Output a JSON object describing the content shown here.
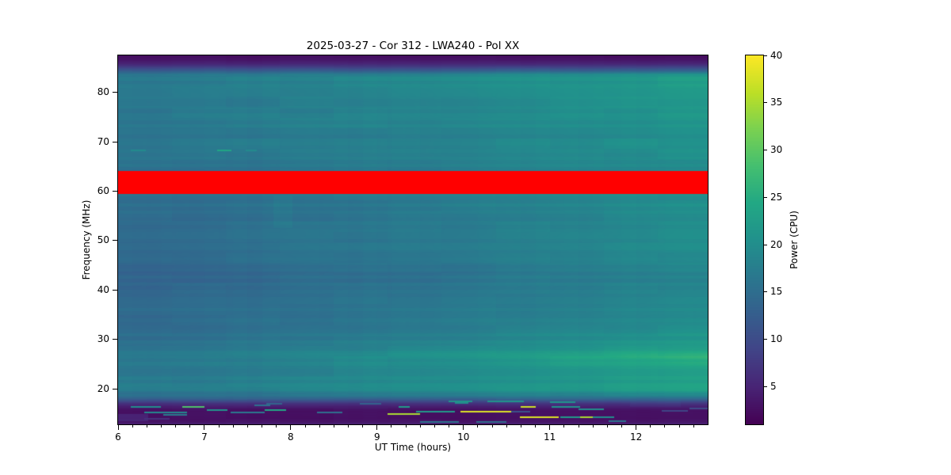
{
  "figure": {
    "background": "#ffffff",
    "text_color": "#000000"
  },
  "chart_data": {
    "type": "heatmap",
    "title": "2025-03-27 - Cor 312 - LWA240 - Pol XX",
    "xlabel": "UT Time (hours)",
    "ylabel": "Frequency (MHz)",
    "colorbar_label": "Power (CPU)",
    "x_range_hours": [
      6.0,
      12.83
    ],
    "y_range_mhz": [
      12.8,
      87.5
    ],
    "value_range": [
      1,
      40
    ],
    "x_major_ticks": [
      6,
      7,
      8,
      9,
      10,
      11,
      12
    ],
    "x_minor_tick_step_hours": 0.166667,
    "y_major_ticks": [
      20,
      30,
      40,
      50,
      60,
      70,
      80
    ],
    "colorbar_ticks": [
      5,
      10,
      15,
      20,
      25,
      30,
      35,
      40
    ],
    "colormap": "viridis",
    "colormap_stops": [
      [
        0.0,
        "#440154"
      ],
      [
        0.1,
        "#482475"
      ],
      [
        0.2,
        "#414487"
      ],
      [
        0.3,
        "#355f8d"
      ],
      [
        0.4,
        "#2a788e"
      ],
      [
        0.5,
        "#21918c"
      ],
      [
        0.6,
        "#22a884"
      ],
      [
        0.7,
        "#44bf70"
      ],
      [
        0.8,
        "#7ad151"
      ],
      [
        0.9,
        "#bddf26"
      ],
      [
        1.0,
        "#fde725"
      ]
    ],
    "masked_band": {
      "f_low": 59.4,
      "f_high": 64.1,
      "color": "#ff0000"
    },
    "time_brightening_gamma": 1.35,
    "background_spectrum": [
      [
        12.8,
        4.3,
        4.3
      ],
      [
        13.3,
        3.0,
        3.0
      ],
      [
        14.0,
        2.3,
        2.4
      ],
      [
        15.0,
        2.6,
        2.7
      ],
      [
        15.8,
        3.2,
        3.4
      ],
      [
        16.4,
        4.2,
        4.6
      ],
      [
        17.0,
        6.3,
        6.8
      ],
      [
        17.5,
        9.3,
        10.0
      ],
      [
        18.0,
        12.3,
        14.0
      ],
      [
        18.6,
        14.8,
        18.0
      ],
      [
        19.5,
        16.9,
        22.8
      ],
      [
        20.5,
        17.1,
        23.6
      ],
      [
        22.0,
        16.8,
        23.2
      ],
      [
        24.0,
        16.7,
        23.8
      ],
      [
        25.5,
        16.6,
        25.2
      ],
      [
        26.5,
        16.8,
        26.8
      ],
      [
        27.5,
        16.2,
        24.2
      ],
      [
        29.0,
        15.6,
        22.3
      ],
      [
        31.0,
        15.1,
        21.2
      ],
      [
        33.0,
        14.8,
        20.4
      ],
      [
        35.0,
        14.6,
        19.9
      ],
      [
        37.0,
        14.3,
        19.4
      ],
      [
        39.0,
        14.1,
        19.2
      ],
      [
        41.0,
        13.9,
        19.0
      ],
      [
        43.0,
        13.7,
        18.8
      ],
      [
        44.9,
        13.6,
        18.7
      ],
      [
        45.3,
        14.3,
        19.6
      ],
      [
        47.0,
        14.5,
        19.8
      ],
      [
        49.0,
        14.7,
        20.2
      ],
      [
        51.0,
        14.8,
        20.3
      ],
      [
        53.0,
        14.8,
        20.1
      ],
      [
        55.0,
        14.7,
        20.0
      ],
      [
        57.0,
        14.9,
        20.3
      ],
      [
        59.3,
        15.1,
        20.6
      ],
      [
        64.3,
        15.5,
        19.9
      ],
      [
        66.0,
        15.9,
        20.3
      ],
      [
        68.0,
        16.1,
        20.7
      ],
      [
        70.0,
        16.1,
        20.6
      ],
      [
        72.0,
        16.3,
        21.0
      ],
      [
        74.0,
        16.4,
        21.3
      ],
      [
        76.0,
        16.6,
        21.7
      ],
      [
        78.0,
        16.6,
        21.9
      ],
      [
        80.0,
        16.9,
        22.4
      ],
      [
        82.0,
        17.1,
        22.8
      ],
      [
        83.6,
        16.6,
        21.9
      ],
      [
        84.3,
        13.0,
        15.0
      ],
      [
        85.0,
        8.5,
        9.5
      ],
      [
        85.8,
        5.0,
        5.4
      ],
      [
        86.6,
        3.1,
        3.3
      ],
      [
        87.5,
        2.1,
        2.1
      ]
    ],
    "noise": {
      "row_amp": 0.7,
      "cell_amp": 0.4,
      "col_amp": 0.2
    },
    "rfi_streaks": [
      [
        6.15,
        6.32,
        68.3,
        19.5
      ],
      [
        7.15,
        7.31,
        68.3,
        24.0
      ],
      [
        7.48,
        7.61,
        68.3,
        19.5
      ],
      [
        6.15,
        6.5,
        16.35,
        20.0
      ],
      [
        6.3,
        6.8,
        15.15,
        19.0
      ],
      [
        6.52,
        6.8,
        14.75,
        17.0
      ],
      [
        6.74,
        7.0,
        16.4,
        29.0
      ],
      [
        7.03,
        7.27,
        15.75,
        21.0
      ],
      [
        7.3,
        7.7,
        15.2,
        16.5
      ],
      [
        7.58,
        7.76,
        16.6,
        15.5
      ],
      [
        7.7,
        7.95,
        15.75,
        24.0
      ],
      [
        7.72,
        7.9,
        16.9,
        13.5
      ],
      [
        8.3,
        8.6,
        15.2,
        15.0
      ],
      [
        8.8,
        9.05,
        16.9,
        13.0
      ],
      [
        9.12,
        9.5,
        14.85,
        35.0
      ],
      [
        9.25,
        9.38,
        16.35,
        22.0
      ],
      [
        9.45,
        9.9,
        15.3,
        22.0
      ],
      [
        9.5,
        9.95,
        13.35,
        16.0
      ],
      [
        9.83,
        10.1,
        17.45,
        21.0
      ],
      [
        9.9,
        10.06,
        17.15,
        20.0
      ],
      [
        9.97,
        10.55,
        15.35,
        38.0
      ],
      [
        10.28,
        10.7,
        17.5,
        21.0
      ],
      [
        10.55,
        10.77,
        15.35,
        11.0
      ],
      [
        10.66,
        10.84,
        16.4,
        37.0
      ],
      [
        10.65,
        11.1,
        14.3,
        38.0
      ],
      [
        11.0,
        11.3,
        17.35,
        21.0
      ],
      [
        11.02,
        11.35,
        16.3,
        21.0
      ],
      [
        11.12,
        11.42,
        14.3,
        22.0
      ],
      [
        11.35,
        11.52,
        14.3,
        35.0
      ],
      [
        11.33,
        11.63,
        15.8,
        20.0
      ],
      [
        11.5,
        11.75,
        14.3,
        20.0
      ],
      [
        11.68,
        11.88,
        13.45,
        16.0
      ],
      [
        12.3,
        12.6,
        15.5,
        9.0
      ],
      [
        12.62,
        12.83,
        16.0,
        9.5
      ],
      [
        10.15,
        10.5,
        13.3,
        15.0
      ],
      [
        6.3,
        6.6,
        13.9,
        6.5
      ]
    ],
    "patches": [
      [
        7.8,
        8.02,
        52.5,
        59.2,
        0.9
      ],
      [
        6.0,
        6.35,
        13.4,
        14.9,
        2.2
      ],
      [
        11.93,
        12.52,
        16.4,
        17.7,
        0.8
      ]
    ]
  }
}
